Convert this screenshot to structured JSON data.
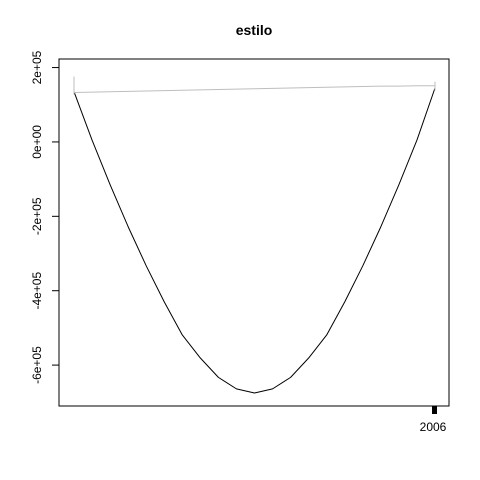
{
  "chart_data": {
    "type": "line",
    "title": "estilo",
    "xlabel": "",
    "ylabel": "",
    "ylim": [
      -710000,
      223000
    ],
    "y_ticks": [
      {
        "value": 200000,
        "label": "2e+05"
      },
      {
        "value": 0,
        "label": "0e+00"
      },
      {
        "value": -200000,
        "label": "-2e+05"
      },
      {
        "value": -400000,
        "label": "-4e+05"
      },
      {
        "value": -600000,
        "label": "-6e+05"
      }
    ],
    "x_tick": {
      "label": "2006"
    },
    "grid": false,
    "legend": "none",
    "series": [
      {
        "color": "#000000",
        "values": [
          135000,
          5000,
          -115000,
          -228000,
          -333000,
          -430000,
          -519000,
          -581000,
          -633000,
          -664000,
          -675000,
          -664000,
          -633000,
          -581000,
          -519000,
          -430000,
          -333000,
          -228000,
          -115000,
          5000,
          145000
        ]
      },
      {
        "color": "#bebebe",
        "values": [
          133000,
          134000,
          135000,
          136000,
          137000,
          138000,
          139000,
          140000,
          141000,
          142000,
          143000,
          144000,
          145000,
          146000,
          147000,
          148000,
          149000,
          150000,
          150000,
          151000,
          151000
        ]
      }
    ],
    "end_whiskers": [
      {
        "position": "start",
        "low": 128000,
        "high": 176000
      },
      {
        "position": "end",
        "low": 138000,
        "high": 162000
      }
    ]
  }
}
